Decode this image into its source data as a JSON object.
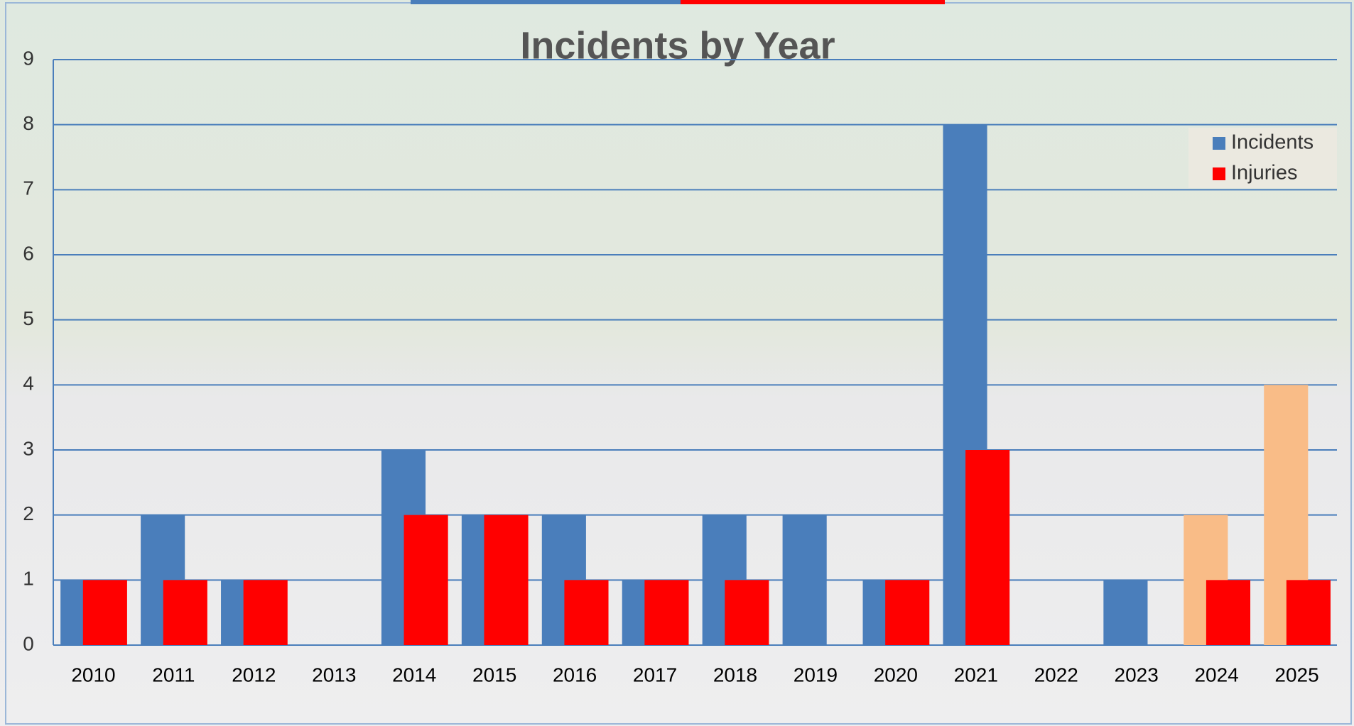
{
  "chart_data": {
    "type": "bar",
    "title": "Incidents by Year",
    "categories": [
      "2010",
      "2011",
      "2012",
      "2013",
      "2014",
      "2015",
      "2016",
      "2017",
      "2018",
      "2019",
      "2020",
      "2021",
      "2022",
      "2023",
      "2024",
      "2025"
    ],
    "series": [
      {
        "name": "Incidents",
        "color": "#4a7ebb",
        "colors": [
          "#4a7ebb",
          "#4a7ebb",
          "#4a7ebb",
          "#4a7ebb",
          "#4a7ebb",
          "#4a7ebb",
          "#4a7ebb",
          "#4a7ebb",
          "#4a7ebb",
          "#4a7ebb",
          "#4a7ebb",
          "#4a7ebb",
          "#4a7ebb",
          "#4a7ebb",
          "#f9bc87",
          "#f9bc87"
        ],
        "values": [
          1,
          2,
          1,
          0,
          3,
          2,
          2,
          1,
          2,
          2,
          1,
          8,
          0,
          1,
          2,
          4
        ]
      },
      {
        "name": "Injuries",
        "color": "#ff0000",
        "values": [
          1,
          1,
          1,
          0,
          2,
          2,
          1,
          1,
          1,
          0,
          1,
          3,
          0,
          0,
          1,
          1
        ]
      }
    ],
    "ylim": [
      0,
      9
    ],
    "yticks": [
      0,
      1,
      2,
      3,
      4,
      5,
      6,
      7,
      8,
      9
    ],
    "grid": true,
    "legend": "top-right"
  }
}
